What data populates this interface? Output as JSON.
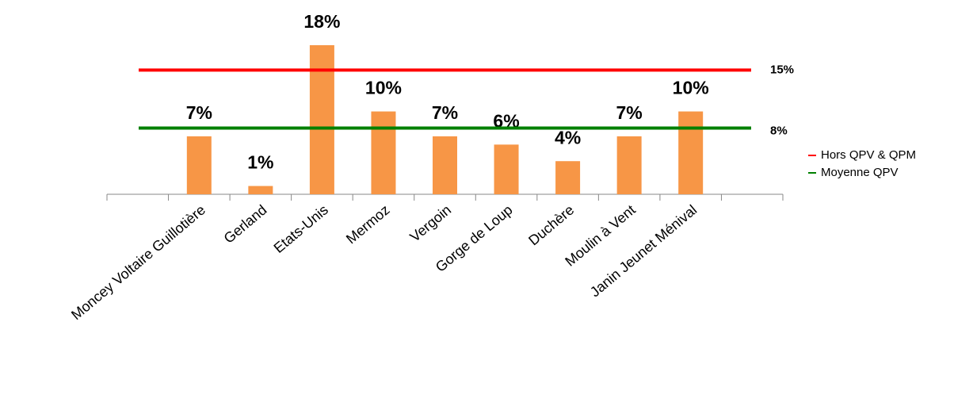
{
  "chart_data": {
    "type": "bar",
    "categories": [
      null,
      "Moncey Voltaire Guillotière",
      "Gerland",
      "Etats-Unis",
      "Mermoz",
      "Vergoin",
      "Gorge de Loup",
      "Duchère",
      "Moulin à Vent",
      "Janin Jeunet Ménival",
      null
    ],
    "values": [
      null,
      7,
      1,
      18,
      10,
      7,
      6,
      4,
      7,
      10,
      null
    ],
    "value_labels": [
      null,
      "7%",
      "1%",
      "18%",
      "10%",
      "7%",
      "6%",
      "4%",
      "7%",
      "10%",
      null
    ],
    "color": "#f79646",
    "ylim": [
      0,
      18
    ],
    "reference_lines": [
      {
        "name": "Hors QPV & QPM",
        "value": 15,
        "value_label": "15%",
        "color": "#ff0000"
      },
      {
        "name": "Moyenne QPV",
        "value": 8,
        "value_label": "8%",
        "color": "#008000"
      }
    ]
  }
}
